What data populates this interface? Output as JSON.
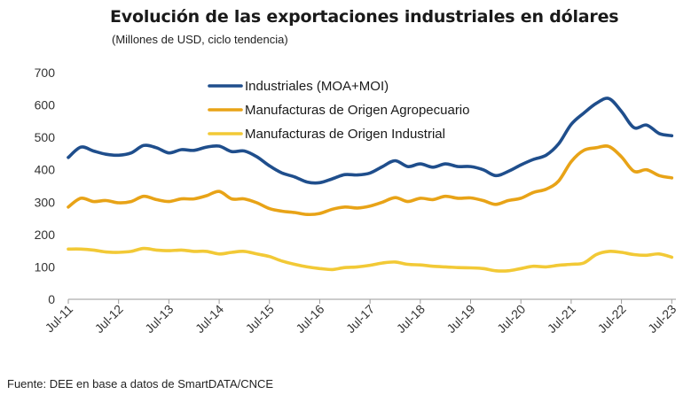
{
  "chart_data": {
    "type": "line",
    "title": "Evolución de las exportaciones industriales en dólares",
    "subtitle": "(Millones de USD, ciclo tendencia)",
    "source": "Fuente: DEE en base a datos de SmartDATA/CNCE",
    "ylim": [
      0,
      700
    ],
    "yticks": [
      0,
      100,
      200,
      300,
      400,
      500,
      600,
      700
    ],
    "xlim": [
      2011.5,
      2023.5833
    ],
    "xticks": [
      {
        "label": "Jul-11",
        "x": 2011.5
      },
      {
        "label": "Jul-12",
        "x": 2012.5
      },
      {
        "label": "Jul-13",
        "x": 2013.5
      },
      {
        "label": "Jul-14",
        "x": 2014.5
      },
      {
        "label": "Jul-15",
        "x": 2015.5
      },
      {
        "label": "Jul-16",
        "x": 2016.5
      },
      {
        "label": "Jul-17",
        "x": 2017.5
      },
      {
        "label": "Jul-18",
        "x": 2018.5
      },
      {
        "label": "Jul-19",
        "x": 2019.5
      },
      {
        "label": "Jul-20",
        "x": 2020.5
      },
      {
        "label": "Jul-21",
        "x": 2021.5
      },
      {
        "label": "Jul-22",
        "x": 2022.5
      },
      {
        "label": "Jul-23",
        "x": 2023.5
      }
    ],
    "grid": false,
    "legend_position": "top-center",
    "series": [
      {
        "name": "Industriales (MOA+MOI)",
        "color": "#1f4e8c",
        "points": [
          [
            2011.5,
            438
          ],
          [
            2011.75,
            470
          ],
          [
            2012.0,
            458
          ],
          [
            2012.25,
            448
          ],
          [
            2012.5,
            445
          ],
          [
            2012.75,
            452
          ],
          [
            2013.0,
            475
          ],
          [
            2013.25,
            468
          ],
          [
            2013.5,
            452
          ],
          [
            2013.75,
            462
          ],
          [
            2014.0,
            460
          ],
          [
            2014.25,
            470
          ],
          [
            2014.5,
            473
          ],
          [
            2014.75,
            456
          ],
          [
            2015.0,
            458
          ],
          [
            2015.25,
            440
          ],
          [
            2015.5,
            412
          ],
          [
            2015.75,
            390
          ],
          [
            2016.0,
            378
          ],
          [
            2016.25,
            362
          ],
          [
            2016.5,
            360
          ],
          [
            2016.75,
            372
          ],
          [
            2017.0,
            385
          ],
          [
            2017.25,
            384
          ],
          [
            2017.5,
            390
          ],
          [
            2017.75,
            410
          ],
          [
            2018.0,
            428
          ],
          [
            2018.25,
            410
          ],
          [
            2018.5,
            418
          ],
          [
            2018.75,
            408
          ],
          [
            2019.0,
            418
          ],
          [
            2019.25,
            410
          ],
          [
            2019.5,
            410
          ],
          [
            2019.75,
            400
          ],
          [
            2020.0,
            382
          ],
          [
            2020.25,
            395
          ],
          [
            2020.5,
            415
          ],
          [
            2020.75,
            432
          ],
          [
            2021.0,
            445
          ],
          [
            2021.25,
            480
          ],
          [
            2021.5,
            540
          ],
          [
            2021.75,
            575
          ],
          [
            2022.0,
            605
          ],
          [
            2022.25,
            620
          ],
          [
            2022.5,
            580
          ],
          [
            2022.75,
            530
          ],
          [
            2023.0,
            538
          ],
          [
            2023.25,
            512
          ],
          [
            2023.5,
            505
          ]
        ]
      },
      {
        "name": "Manufacturas de Origen Agropecuario",
        "color": "#e8a317",
        "points": [
          [
            2011.5,
            285
          ],
          [
            2011.75,
            312
          ],
          [
            2012.0,
            302
          ],
          [
            2012.25,
            305
          ],
          [
            2012.5,
            298
          ],
          [
            2012.75,
            302
          ],
          [
            2013.0,
            318
          ],
          [
            2013.25,
            308
          ],
          [
            2013.5,
            302
          ],
          [
            2013.75,
            310
          ],
          [
            2014.0,
            310
          ],
          [
            2014.25,
            320
          ],
          [
            2014.5,
            333
          ],
          [
            2014.75,
            310
          ],
          [
            2015.0,
            310
          ],
          [
            2015.25,
            298
          ],
          [
            2015.5,
            280
          ],
          [
            2015.75,
            272
          ],
          [
            2016.0,
            268
          ],
          [
            2016.25,
            262
          ],
          [
            2016.5,
            265
          ],
          [
            2016.75,
            278
          ],
          [
            2017.0,
            285
          ],
          [
            2017.25,
            282
          ],
          [
            2017.5,
            288
          ],
          [
            2017.75,
            300
          ],
          [
            2018.0,
            314
          ],
          [
            2018.25,
            302
          ],
          [
            2018.5,
            312
          ],
          [
            2018.75,
            308
          ],
          [
            2019.0,
            318
          ],
          [
            2019.25,
            312
          ],
          [
            2019.5,
            313
          ],
          [
            2019.75,
            305
          ],
          [
            2020.0,
            293
          ],
          [
            2020.25,
            305
          ],
          [
            2020.5,
            312
          ],
          [
            2020.75,
            330
          ],
          [
            2021.0,
            340
          ],
          [
            2021.25,
            365
          ],
          [
            2021.5,
            425
          ],
          [
            2021.75,
            460
          ],
          [
            2022.0,
            468
          ],
          [
            2022.25,
            472
          ],
          [
            2022.5,
            440
          ],
          [
            2022.75,
            395
          ],
          [
            2023.0,
            400
          ],
          [
            2023.25,
            382
          ],
          [
            2023.5,
            375
          ]
        ]
      },
      {
        "name": "Manufacturas de Origen Industrial",
        "color": "#f2c936",
        "points": [
          [
            2011.5,
            155
          ],
          [
            2011.75,
            155
          ],
          [
            2012.0,
            152
          ],
          [
            2012.25,
            146
          ],
          [
            2012.5,
            145
          ],
          [
            2012.75,
            148
          ],
          [
            2013.0,
            157
          ],
          [
            2013.25,
            152
          ],
          [
            2013.5,
            150
          ],
          [
            2013.75,
            152
          ],
          [
            2014.0,
            148
          ],
          [
            2014.25,
            148
          ],
          [
            2014.5,
            140
          ],
          [
            2014.75,
            145
          ],
          [
            2015.0,
            148
          ],
          [
            2015.25,
            140
          ],
          [
            2015.5,
            132
          ],
          [
            2015.75,
            118
          ],
          [
            2016.0,
            108
          ],
          [
            2016.25,
            100
          ],
          [
            2016.5,
            95
          ],
          [
            2016.75,
            92
          ],
          [
            2017.0,
            98
          ],
          [
            2017.25,
            100
          ],
          [
            2017.5,
            105
          ],
          [
            2017.75,
            112
          ],
          [
            2018.0,
            115
          ],
          [
            2018.25,
            108
          ],
          [
            2018.5,
            106
          ],
          [
            2018.75,
            102
          ],
          [
            2019.0,
            100
          ],
          [
            2019.25,
            98
          ],
          [
            2019.5,
            97
          ],
          [
            2019.75,
            95
          ],
          [
            2020.0,
            88
          ],
          [
            2020.25,
            88
          ],
          [
            2020.5,
            95
          ],
          [
            2020.75,
            102
          ],
          [
            2021.0,
            100
          ],
          [
            2021.25,
            105
          ],
          [
            2021.5,
            108
          ],
          [
            2021.75,
            112
          ],
          [
            2022.0,
            138
          ],
          [
            2022.25,
            148
          ],
          [
            2022.5,
            145
          ],
          [
            2022.75,
            138
          ],
          [
            2023.0,
            136
          ],
          [
            2023.25,
            140
          ],
          [
            2023.5,
            130
          ]
        ]
      }
    ]
  }
}
